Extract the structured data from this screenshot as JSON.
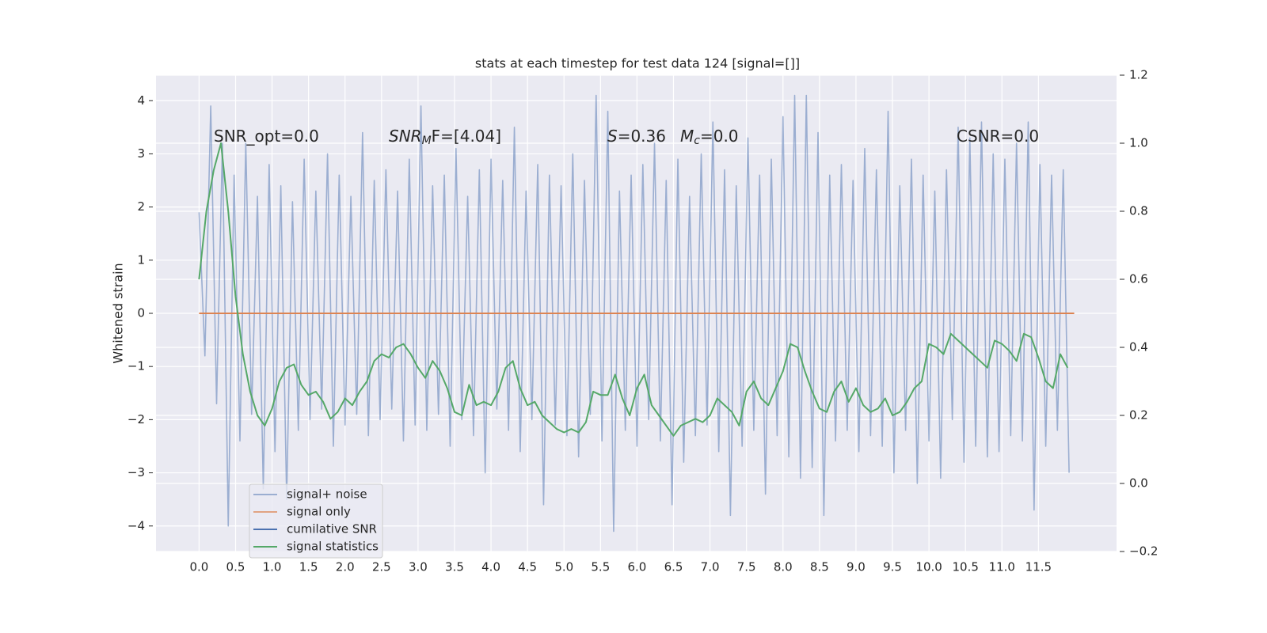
{
  "chart_data": {
    "type": "line",
    "title": "stats at each timestep for test data 124 [signal=[]]",
    "ylabel": "Whitened strain",
    "xlim": [
      -0.59,
      12.57
    ],
    "ylim": [
      -4.48,
      4.48
    ],
    "y2lim": [
      -0.2,
      1.2
    ],
    "grid": true,
    "legend": "lower left",
    "xticks": [
      {
        "value": 0,
        "label": "0.0"
      },
      0.5,
      {
        "value": 1,
        "label": "1.0"
      },
      1.5,
      {
        "value": 2,
        "label": "2.0"
      },
      2.5,
      {
        "value": 3,
        "label": "3.0"
      },
      3.5,
      {
        "value": 4,
        "label": "4.0"
      },
      4.5,
      {
        "value": 5,
        "label": "5.0"
      },
      5.5,
      {
        "value": 6,
        "label": "6.0"
      },
      6.5,
      {
        "value": 7,
        "label": "7.0"
      },
      7.5,
      {
        "value": 8,
        "label": "8.0"
      },
      8.5,
      {
        "value": 9,
        "label": "9.0"
      },
      9.5,
      {
        "value": 10,
        "label": "10.0"
      },
      10.5,
      {
        "value": 11,
        "label": "11.0"
      },
      11.5
    ],
    "yticks": [
      {
        "value": -4,
        "label": "−4"
      },
      {
        "value": -3,
        "label": "−3"
      },
      {
        "value": -2,
        "label": "−2"
      },
      {
        "value": -1,
        "label": "−1"
      },
      0,
      1,
      2,
      3,
      4
    ],
    "y2ticks": [
      {
        "value": -0.2,
        "label": "−0.2"
      },
      {
        "value": 0,
        "label": "0.0"
      },
      0.2,
      0.4,
      0.6,
      0.8,
      {
        "value": 1,
        "label": "1.0"
      },
      1.2
    ],
    "annotations": [
      {
        "parts": [
          {
            "text": "SNR_opt=0.0"
          }
        ]
      },
      {
        "parts": [
          {
            "text": "SNR",
            "italic": true
          },
          {
            "text": "M",
            "italic": true,
            "sub": true
          },
          {
            "text": "F=[4.04]"
          }
        ]
      },
      {
        "parts": [
          {
            "text": "S",
            "italic": true
          },
          {
            "text": "=0.36"
          }
        ]
      },
      {
        "parts": [
          {
            "text": "M",
            "italic": true
          },
          {
            "text": "c",
            "italic": true,
            "sub": true
          },
          {
            "text": "=0.0"
          }
        ]
      },
      {
        "parts": [
          {
            "text": "CSNR=0.0"
          }
        ]
      }
    ],
    "series": [
      {
        "name": "signal+ noise",
        "color": "#4c72b0",
        "x": [
          0,
          0.08,
          0.16,
          0.24,
          0.32,
          0.4,
          0.48,
          0.56,
          0.64,
          0.72,
          0.8,
          0.88,
          0.96,
          1.04,
          1.12,
          1.2,
          1.28,
          1.36,
          1.44,
          1.52,
          1.6,
          1.68,
          1.76,
          1.84,
          1.92,
          2,
          2.08,
          2.16,
          2.24,
          2.32,
          2.4,
          2.48,
          2.56,
          2.64,
          2.72,
          2.8,
          2.88,
          2.96,
          3.04,
          3.12,
          3.2,
          3.28,
          3.36,
          3.44,
          3.52,
          3.6,
          3.68,
          3.76,
          3.84,
          3.92,
          4,
          4.08,
          4.16,
          4.24,
          4.32,
          4.4,
          4.48,
          4.56,
          4.64,
          4.72,
          4.8,
          4.88,
          4.96,
          5.04,
          5.12,
          5.2,
          5.28,
          5.36,
          5.44,
          5.52,
          5.6,
          5.68,
          5.76,
          5.84,
          5.92,
          6,
          6.08,
          6.16,
          6.24,
          6.32,
          6.4,
          6.48,
          6.56,
          6.64,
          6.72,
          6.8,
          6.88,
          6.96,
          7.04,
          7.12,
          7.2,
          7.28,
          7.36,
          7.44,
          7.52,
          7.6,
          7.68,
          7.76,
          7.84,
          7.92,
          8,
          8.08,
          8.16,
          8.24,
          8.32,
          8.4,
          8.48,
          8.56,
          8.64,
          8.72,
          8.8,
          8.88,
          8.96,
          9.04,
          9.12,
          9.2,
          9.28,
          9.36,
          9.44,
          9.52,
          9.6,
          9.68,
          9.76,
          9.84,
          9.92,
          10,
          10.08,
          10.16,
          10.24,
          10.32,
          10.4,
          10.48,
          10.56,
          10.64,
          10.72,
          10.8,
          10.88,
          10.96,
          11.04,
          11.12,
          11.2,
          11.28,
          11.36,
          11.44,
          11.52,
          11.6,
          11.68,
          11.76,
          11.84,
          11.92
        ],
        "values": [
          1.9,
          -0.8,
          3.9,
          -1.7,
          3.2,
          -4.0,
          2.6,
          -2.4,
          3.2,
          -1.9,
          2.2,
          -3.3,
          2.8,
          -2.6,
          2.4,
          -3.5,
          2.1,
          -2.2,
          2.9,
          -2.0,
          2.3,
          -1.8,
          3.0,
          -2.5,
          2.6,
          -2.1,
          2.2,
          -1.9,
          3.4,
          -2.3,
          2.5,
          -2.0,
          2.7,
          -1.8,
          2.3,
          -2.4,
          2.9,
          -2.1,
          3.9,
          -2.2,
          2.4,
          -1.9,
          2.6,
          -2.5,
          3.1,
          -2.0,
          2.2,
          -2.3,
          2.7,
          -3.0,
          2.9,
          -1.8,
          2.5,
          -2.2,
          3.5,
          -2.6,
          2.3,
          -2.0,
          2.8,
          -3.6,
          2.6,
          -2.1,
          2.4,
          -2.3,
          3.0,
          -2.7,
          2.5,
          -1.9,
          4.1,
          -2.4,
          3.8,
          -4.1,
          2.3,
          -2.2,
          2.6,
          -2.5,
          2.8,
          -2.0,
          3.2,
          -2.4,
          2.5,
          -3.6,
          2.9,
          -2.8,
          2.2,
          -2.3,
          3.0,
          -2.1,
          3.6,
          -2.6,
          2.7,
          -3.8,
          2.4,
          -2.5,
          3.3,
          -2.2,
          2.6,
          -3.4,
          2.9,
          -2.3,
          3.7,
          -2.7,
          4.1,
          -3.1,
          4.1,
          -2.9,
          3.4,
          -3.8,
          2.6,
          -2.4,
          2.8,
          -2.2,
          2.5,
          -2.6,
          3.1,
          -2.3,
          2.7,
          -2.5,
          3.8,
          -3.0,
          2.4,
          -2.2,
          2.9,
          -3.2,
          2.6,
          -2.4,
          2.3,
          -3.1,
          2.7,
          -2.0,
          3.5,
          -2.8,
          3.3,
          -2.5,
          3.6,
          -2.7,
          3.0,
          -2.6,
          2.9,
          -2.3,
          3.2,
          -2.4,
          3.6,
          -3.7,
          2.8,
          -2.5,
          2.6,
          -2.2,
          2.7,
          -3.0
        ]
      },
      {
        "name": "signal only",
        "color": "#dd8452",
        "x": [
          0,
          11.99
        ],
        "values": [
          0,
          0
        ]
      },
      {
        "name": "cumilative SNR",
        "color": "#4c72b0"
      },
      {
        "name": "signal statistics",
        "color": "#55a868",
        "axis": "y2",
        "x": [
          0,
          0.1,
          0.2,
          0.3,
          0.4,
          0.5,
          0.6,
          0.7,
          0.8,
          0.9,
          1,
          1.1,
          1.2,
          1.3,
          1.4,
          1.5,
          1.6,
          1.7,
          1.8,
          1.9,
          2,
          2.1,
          2.2,
          2.3,
          2.4,
          2.5,
          2.6,
          2.7,
          2.8,
          2.9,
          3,
          3.1,
          3.2,
          3.3,
          3.4,
          3.5,
          3.6,
          3.7,
          3.8,
          3.9,
          4,
          4.1,
          4.2,
          4.3,
          4.4,
          4.5,
          4.6,
          4.7,
          4.8,
          4.9,
          5,
          5.1,
          5.2,
          5.3,
          5.4,
          5.5,
          5.6,
          5.7,
          5.8,
          5.9,
          6,
          6.1,
          6.2,
          6.3,
          6.4,
          6.5,
          6.6,
          6.7,
          6.8,
          6.9,
          7,
          7.1,
          7.2,
          7.3,
          7.4,
          7.5,
          7.6,
          7.7,
          7.8,
          7.9,
          8,
          8.1,
          8.2,
          8.3,
          8.4,
          8.5,
          8.6,
          8.7,
          8.8,
          8.9,
          9,
          9.1,
          9.2,
          9.3,
          9.4,
          9.5,
          9.6,
          9.7,
          9.8,
          9.9,
          10,
          10.1,
          10.2,
          10.3,
          10.4,
          10.5,
          10.6,
          10.7,
          10.8,
          10.9,
          11,
          11.1,
          11.2,
          11.3,
          11.4,
          11.5,
          11.6,
          11.7,
          11.8,
          11.9
        ],
        "values": [
          0.6,
          0.8,
          0.92,
          1.0,
          0.8,
          0.55,
          0.38,
          0.27,
          0.2,
          0.17,
          0.22,
          0.3,
          0.34,
          0.35,
          0.29,
          0.26,
          0.27,
          0.24,
          0.19,
          0.21,
          0.25,
          0.23,
          0.27,
          0.3,
          0.36,
          0.38,
          0.37,
          0.4,
          0.41,
          0.38,
          0.34,
          0.31,
          0.36,
          0.33,
          0.28,
          0.21,
          0.2,
          0.29,
          0.23,
          0.24,
          0.23,
          0.27,
          0.34,
          0.36,
          0.28,
          0.23,
          0.24,
          0.2,
          0.18,
          0.16,
          0.15,
          0.16,
          0.15,
          0.18,
          0.27,
          0.26,
          0.26,
          0.32,
          0.25,
          0.2,
          0.28,
          0.32,
          0.23,
          0.2,
          0.17,
          0.14,
          0.17,
          0.18,
          0.19,
          0.18,
          0.2,
          0.25,
          0.23,
          0.21,
          0.17,
          0.27,
          0.3,
          0.25,
          0.23,
          0.28,
          0.33,
          0.41,
          0.4,
          0.33,
          0.27,
          0.22,
          0.21,
          0.27,
          0.3,
          0.24,
          0.28,
          0.23,
          0.21,
          0.22,
          0.25,
          0.2,
          0.21,
          0.24,
          0.28,
          0.3,
          0.41,
          0.4,
          0.38,
          0.44,
          0.42,
          0.4,
          0.38,
          0.36,
          0.34,
          0.42,
          0.41,
          0.39,
          0.36,
          0.44,
          0.43,
          0.37,
          0.3,
          0.28,
          0.38,
          0.34
        ]
      }
    ]
  }
}
